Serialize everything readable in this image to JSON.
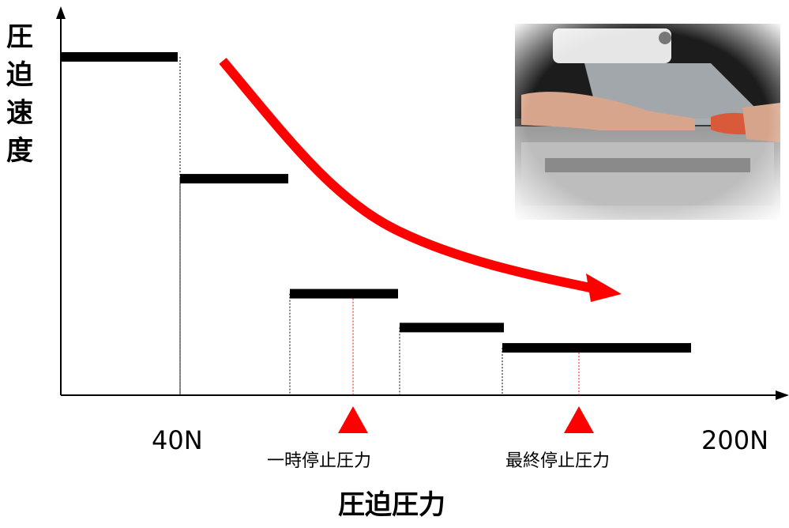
{
  "chart_data": {
    "type": "step",
    "y_label": "圧迫速度",
    "x_label": "圧迫圧力",
    "x_ticks": [
      "40N",
      "200N"
    ],
    "markers": [
      {
        "label": "一時停止圧力",
        "color": "#ff0000"
      },
      {
        "label": "最終停止圧力",
        "color": "#ff0000"
      }
    ],
    "steps": [
      {
        "level": 1.0
      },
      {
        "level": 0.64
      },
      {
        "level": 0.3
      },
      {
        "level": 0.2
      },
      {
        "level": 0.14
      }
    ],
    "trend": "decreasing",
    "trend_color": "#ff0000",
    "step_color": "#000000"
  },
  "photo": {
    "icon": "mammography-compression-photo"
  }
}
